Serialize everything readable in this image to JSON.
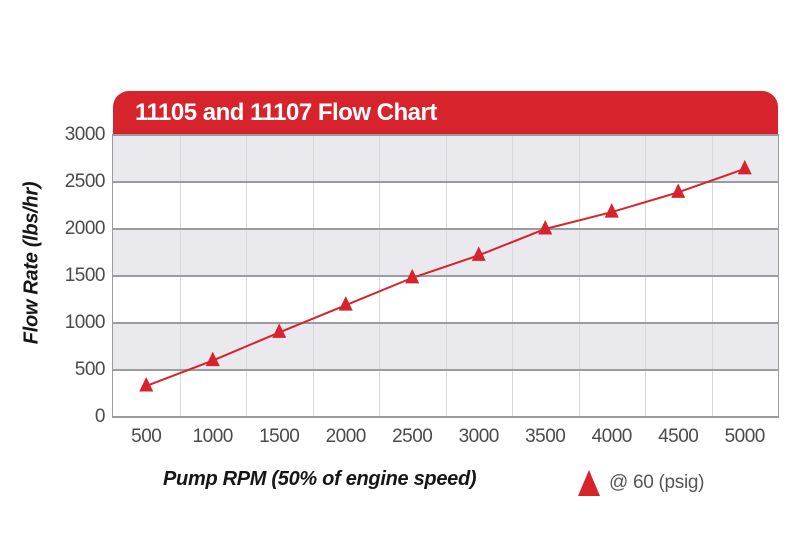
{
  "chart_data": {
    "type": "line",
    "title": "11105 and 11107 Flow Chart",
    "xlabel": "Pump RPM (50% of engine speed)",
    "ylabel": "Flow Rate (lbs/hr)",
    "categories": [
      "500",
      "1000",
      "1500",
      "2000",
      "2500",
      "3000",
      "3500",
      "4000",
      "4500",
      "5000"
    ],
    "series": [
      {
        "name": "@ 60 (psig)",
        "marker": "triangle-up",
        "color": "#d7232b",
        "values": [
          330,
          600,
          900,
          1190,
          1480,
          1720,
          2000,
          2180,
          2390,
          2640
        ]
      }
    ],
    "ylim": [
      0,
      3000
    ],
    "yticks": [
      0,
      500,
      1000,
      1500,
      2000,
      2500,
      3000
    ],
    "grid": {
      "horizontal": true,
      "vertical": true,
      "alternating_bands": true
    },
    "legend_position": "bottom-right"
  },
  "colors": {
    "banner_red": "#d7232b",
    "series_red": "#d7232b",
    "band_gray": "#e9e9ee",
    "band_white": "#ffffff",
    "hgrid_gray": "#9b9ba0",
    "vgrid_gray": "#d8d8dc",
    "tick_text": "#4b4b4d",
    "axis_title_text": "#161616",
    "legend_text": "#57575a",
    "title_text": "#ffffff"
  }
}
